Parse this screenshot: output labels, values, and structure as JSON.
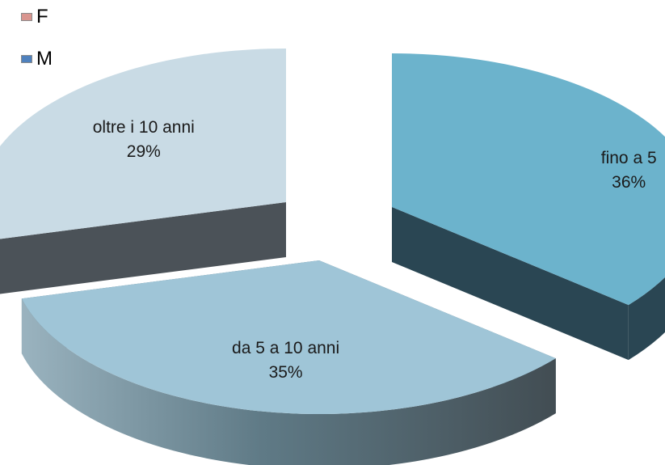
{
  "chart_data": {
    "type": "pie",
    "style": "3d-exploded",
    "legend_position": "top-left",
    "legend": [
      {
        "label": "F",
        "color": "#d9958f"
      },
      {
        "label": "M",
        "color": "#4f81bd"
      }
    ],
    "slices": [
      {
        "label": "fino a 5",
        "value": 36,
        "percent": "36%",
        "top_color": "#6cb3cc",
        "side_color": "#2a4653"
      },
      {
        "label": "da 5 a 10 anni",
        "value": 35,
        "percent": "35%",
        "top_color": "#9fc5d7",
        "side_color": "#5b7580"
      },
      {
        "label": "oltre i 10 anni",
        "value": 29,
        "percent": "29%",
        "top_color": "#c9dbe5",
        "side_color": "#4b5258"
      }
    ]
  }
}
